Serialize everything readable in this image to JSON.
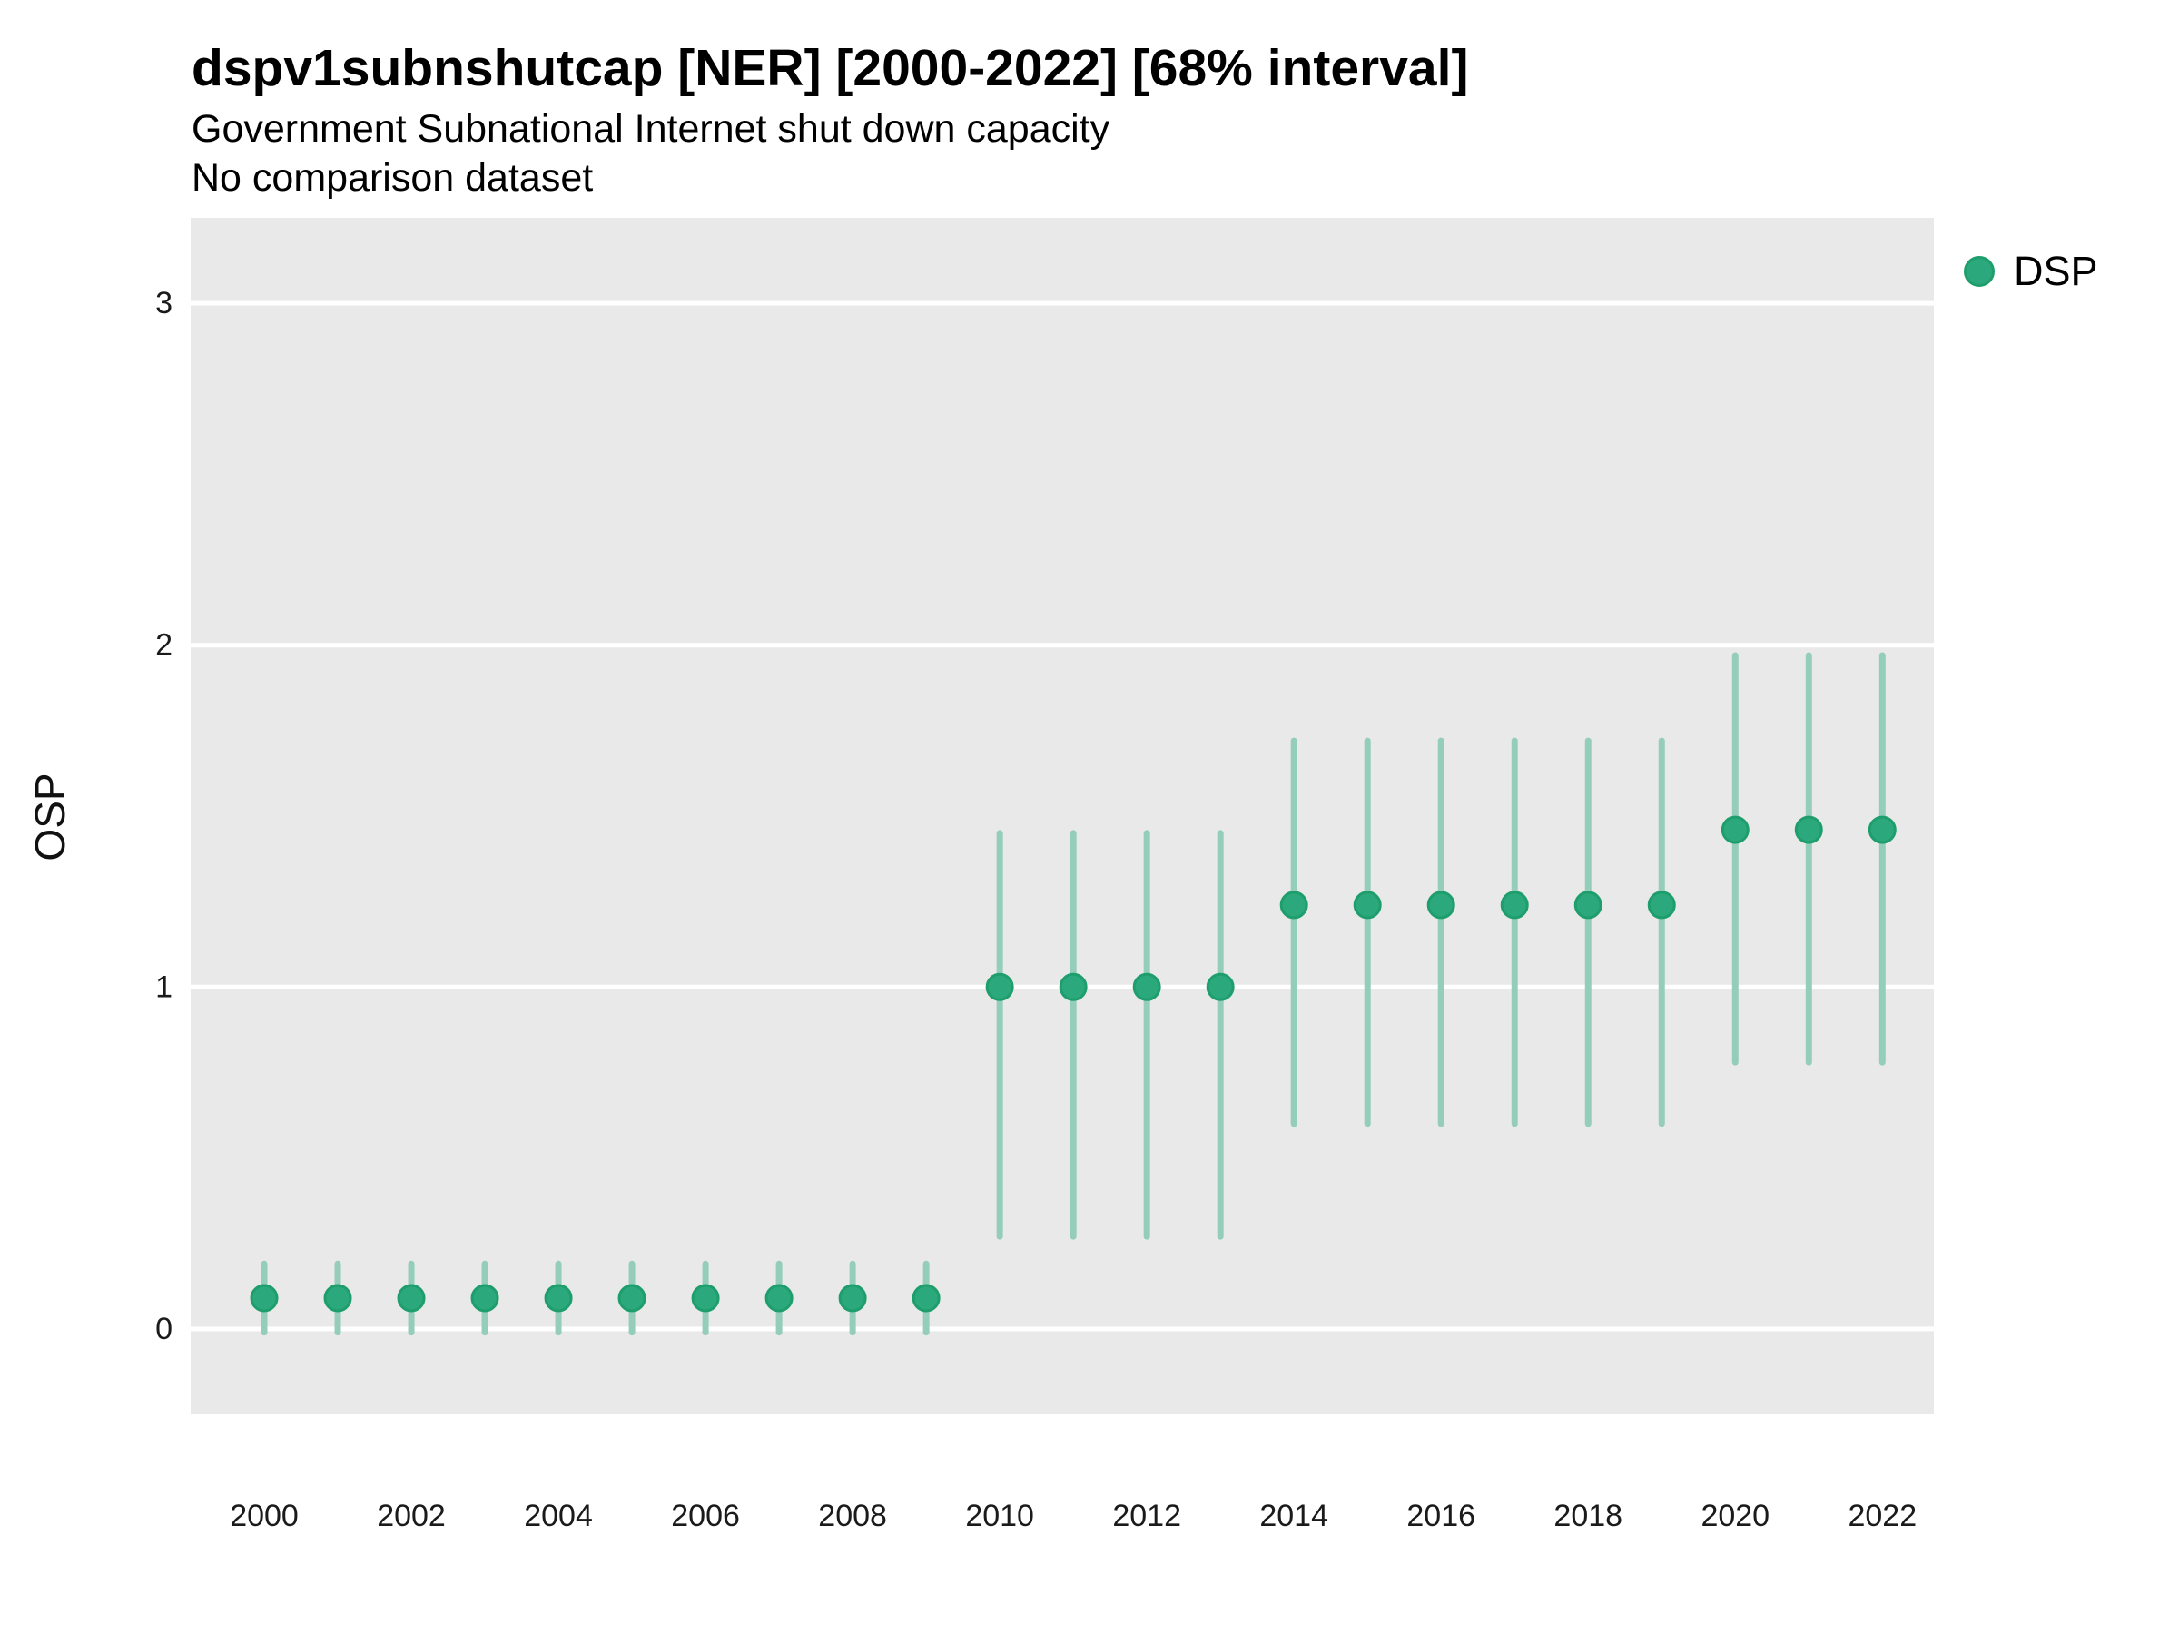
{
  "header": {
    "title": "dspv1subnshutcap [NER] [2000-2022] [68% interval]",
    "subtitle": "Government Subnational Internet shut down capacity",
    "note": "No comparison dataset"
  },
  "axes": {
    "y_label": "OSP",
    "y_ticks": [
      0,
      1,
      2,
      3
    ],
    "x_ticks": [
      2000,
      2002,
      2004,
      2006,
      2008,
      2010,
      2012,
      2014,
      2016,
      2018,
      2020,
      2022
    ]
  },
  "legend": {
    "label": "DSP",
    "position": "right-top"
  },
  "colors": {
    "point_fill": "#2ca87d",
    "point_stroke": "#1f9e6d",
    "interval_bar": "#94cdb9",
    "panel_background": "#e9e9e9",
    "grid_line": "#ffffff",
    "axis_text": "#1a1a1a"
  },
  "chart_data": {
    "type": "scatter",
    "variant": "pointrange",
    "title": "dspv1subnshutcap [NER] [2000-2022] [68% interval]",
    "subtitle": "Government Subnational Internet shut down capacity",
    "caption": "No comparison dataset",
    "xlabel": "",
    "ylabel": "OSP",
    "interval": "68%",
    "grid": "horizontal-major-only",
    "legend_position": "right-top",
    "xlim": [
      1999,
      2022.7
    ],
    "ylim": [
      -0.25,
      3.25
    ],
    "yticks": [
      0,
      1,
      2,
      3
    ],
    "xticks": [
      2000,
      2002,
      2004,
      2006,
      2008,
      2010,
      2012,
      2014,
      2016,
      2018,
      2020,
      2022
    ],
    "series": [
      {
        "name": "DSP",
        "color": "#2ca87d",
        "points": [
          {
            "x": 2000,
            "y": 0.09,
            "lo": -0.01,
            "hi": 0.19
          },
          {
            "x": 2001,
            "y": 0.09,
            "lo": -0.01,
            "hi": 0.19
          },
          {
            "x": 2002,
            "y": 0.09,
            "lo": -0.01,
            "hi": 0.19
          },
          {
            "x": 2003,
            "y": 0.09,
            "lo": -0.01,
            "hi": 0.19
          },
          {
            "x": 2004,
            "y": 0.09,
            "lo": -0.01,
            "hi": 0.19
          },
          {
            "x": 2005,
            "y": 0.09,
            "lo": -0.01,
            "hi": 0.19
          },
          {
            "x": 2006,
            "y": 0.09,
            "lo": -0.01,
            "hi": 0.19
          },
          {
            "x": 2007,
            "y": 0.09,
            "lo": -0.01,
            "hi": 0.19
          },
          {
            "x": 2008,
            "y": 0.09,
            "lo": -0.01,
            "hi": 0.19
          },
          {
            "x": 2009,
            "y": 0.09,
            "lo": -0.01,
            "hi": 0.19
          },
          {
            "x": 2010,
            "y": 1.0,
            "lo": 0.27,
            "hi": 1.45
          },
          {
            "x": 2011,
            "y": 1.0,
            "lo": 0.27,
            "hi": 1.45
          },
          {
            "x": 2012,
            "y": 1.0,
            "lo": 0.27,
            "hi": 1.45
          },
          {
            "x": 2013,
            "y": 1.0,
            "lo": 0.27,
            "hi": 1.45
          },
          {
            "x": 2014,
            "y": 1.24,
            "lo": 0.6,
            "hi": 1.72
          },
          {
            "x": 2015,
            "y": 1.24,
            "lo": 0.6,
            "hi": 1.72
          },
          {
            "x": 2016,
            "y": 1.24,
            "lo": 0.6,
            "hi": 1.72
          },
          {
            "x": 2017,
            "y": 1.24,
            "lo": 0.6,
            "hi": 1.72
          },
          {
            "x": 2018,
            "y": 1.24,
            "lo": 0.6,
            "hi": 1.72
          },
          {
            "x": 2019,
            "y": 1.24,
            "lo": 0.6,
            "hi": 1.72
          },
          {
            "x": 2020,
            "y": 1.46,
            "lo": 0.78,
            "hi": 1.97
          },
          {
            "x": 2021,
            "y": 1.46,
            "lo": 0.78,
            "hi": 1.97
          },
          {
            "x": 2022,
            "y": 1.46,
            "lo": 0.78,
            "hi": 1.97
          }
        ]
      }
    ]
  }
}
